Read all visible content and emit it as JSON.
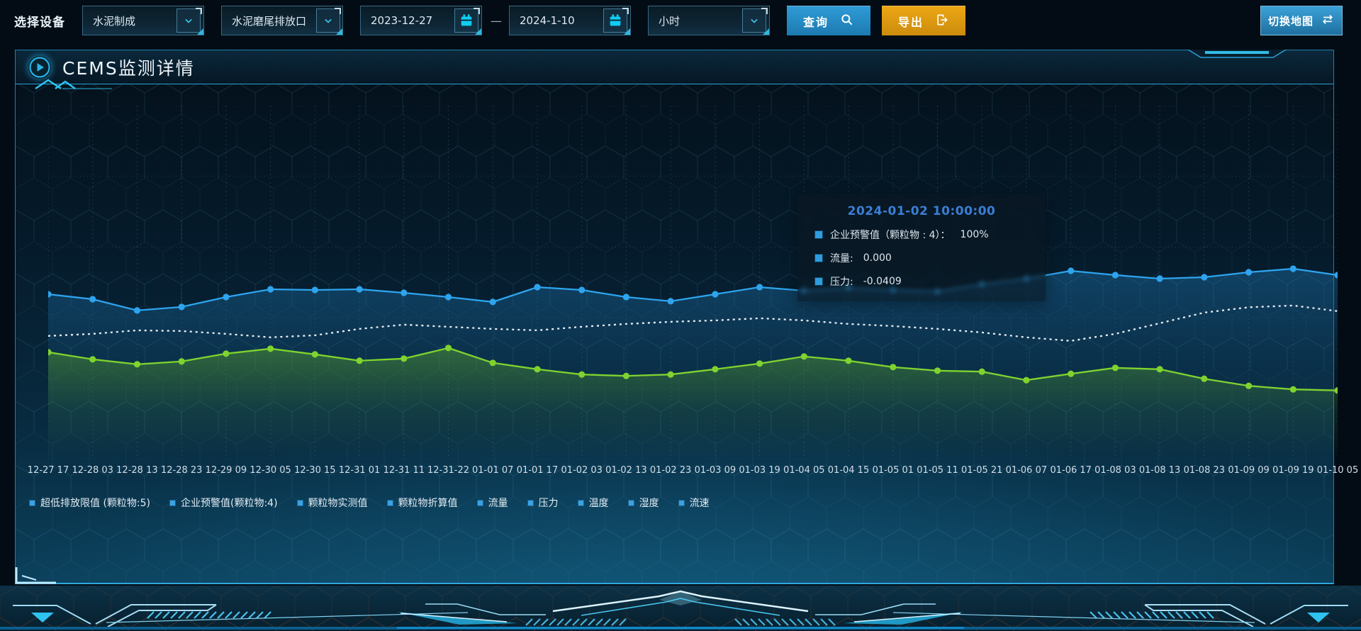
{
  "toolbar": {
    "device_label": "选择设备",
    "device_select_1": "水泥制成",
    "device_select_2": "水泥磨尾排放口",
    "date_start": "2023-12-27",
    "date_separator": "—",
    "date_end": "2024-1-10",
    "interval_select": "小时",
    "query_button": "查询",
    "export_button": "导出",
    "switch_map_button": "切换地图"
  },
  "panel": {
    "title": "CEMS监测详情"
  },
  "tooltip": {
    "title": "2024-01-02 10:00:00",
    "items": [
      {
        "label": "企业预警值（颗粒物 : 4）：",
        "value": "100%"
      },
      {
        "label": "流量:",
        "value": "0.000"
      },
      {
        "label": "压力:",
        "value": "-0.0409"
      }
    ]
  },
  "chart_data": {
    "type": "line",
    "title": "CEMS监测详情",
    "x": [
      "12-27 17",
      "12-28 03",
      "12-28 13",
      "12-28 23",
      "12-29 09",
      "12-30 05",
      "12-30 15",
      "12-31 01",
      "12-31 11",
      "12-31-22",
      "01-01 07",
      "01-01 17",
      "01-02 03",
      "01-02 13",
      "01-02 23",
      "01-03 09",
      "01-03 19",
      "01-04 05",
      "01-04 15",
      "01-05 01",
      "01-05 11",
      "01-05 21",
      "01-06 07",
      "01-06 17",
      "01-08 03",
      "01-08 13",
      "01-08 23",
      "01-09 09",
      "01-09 19",
      "01-10 05"
    ],
    "ylim": [
      0,
      100
    ],
    "y_units": "percent_of_plot_height",
    "y_axis_labels_visible": false,
    "grid": true,
    "legend_position": "bottom",
    "legend": [
      "超低排放限值 (颗粒物:5)",
      "企业预警值(颗粒物:4)",
      "颗粒物实测值",
      "颗粒物折算值",
      "流量",
      "压力",
      "温度",
      "湿度",
      "流速"
    ],
    "series": [
      {
        "name": "series-blue",
        "color": "#2ea4ee",
        "line": "solid",
        "dots": true,
        "area": true,
        "area_color": "#1d6fa8",
        "values": [
          46.7,
          45.3,
          42.1,
          43.1,
          45.9,
          48.1,
          47.9,
          48.1,
          47.1,
          45.9,
          44.5,
          48.7,
          47.9,
          45.9,
          44.7,
          46.7,
          48.7,
          47.7,
          48.5,
          47.9,
          47.5,
          49.5,
          51.1,
          53.3,
          52.1,
          51.1,
          51.5,
          52.9,
          53.9,
          52.1
        ]
      },
      {
        "name": "series-white-dotted",
        "color": "#e8eef2",
        "line": "dotted",
        "dots": false,
        "area": false,
        "values": [
          34.9,
          35.5,
          36.5,
          36.3,
          35.5,
          34.5,
          35.1,
          36.9,
          38.1,
          37.5,
          36.9,
          36.5,
          37.5,
          38.3,
          38.9,
          39.3,
          39.9,
          39.3,
          38.3,
          37.7,
          36.9,
          35.9,
          34.5,
          33.5,
          35.5,
          38.5,
          41.5,
          43.0,
          43.5,
          41.9
        ]
      },
      {
        "name": "series-green",
        "color": "#7fd32f",
        "line": "solid",
        "dots": true,
        "area": true,
        "area_color": "#5da82a",
        "values": [
          30.3,
          28.3,
          26.9,
          27.7,
          29.9,
          31.3,
          29.7,
          27.9,
          28.5,
          31.5,
          27.3,
          25.5,
          24.0,
          23.6,
          24.0,
          25.5,
          27.1,
          29.1,
          27.9,
          26.1,
          25.1,
          24.8,
          22.4,
          24.2,
          25.9,
          25.5,
          22.8,
          20.8,
          19.8,
          19.5
        ]
      }
    ]
  },
  "colors": {
    "accent": "#2fa7e0",
    "query_button": "#1d7db4",
    "export_button": "#e3a015",
    "line_blue": "#2ea4ee",
    "line_green": "#7fd32f",
    "line_white": "#e8eef2",
    "tooltip_title": "#3a7fd5",
    "legend_marker": "#39a2e4"
  }
}
